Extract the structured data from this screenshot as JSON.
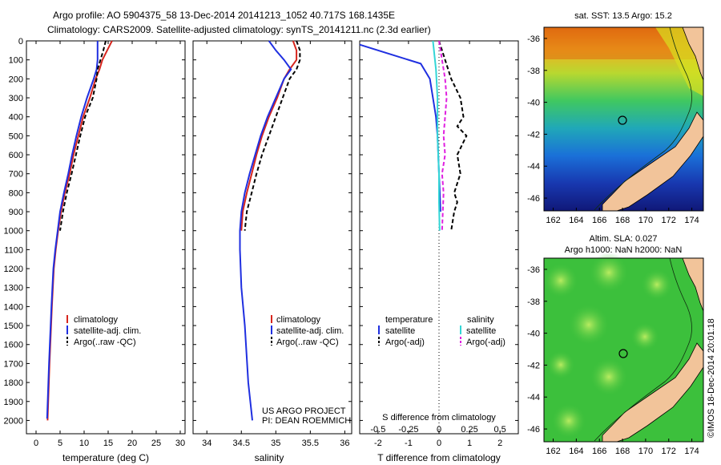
{
  "header": {
    "title_line1": "Argo profile: AO 5904375_58 13-Dec-2014 20141213_1052 40.717S 168.1435E",
    "title_line2": "Climatology: CARS2009. Satellite-adjusted climatology: synTS_20141211.nc (2.3d earlier)"
  },
  "colors": {
    "climatology": "#d7261e",
    "satellite": "#1f2fe0",
    "argo": "#000000",
    "satellite_salinity": "#33d6d6",
    "argo_salinity_adj": "#e020e0",
    "land": "#f2c49a"
  },
  "chart_data": [
    {
      "name": "temperature-profile",
      "type": "line",
      "xlabel": "temperature (deg C)",
      "xlim": [
        -2,
        31
      ],
      "xticks": [
        0,
        5,
        10,
        15,
        20,
        25,
        30
      ],
      "ylim": [
        0,
        2070
      ],
      "yticks": [
        0,
        100,
        200,
        300,
        400,
        500,
        600,
        700,
        800,
        900,
        1000,
        1100,
        1200,
        1300,
        1400,
        1500,
        1600,
        1700,
        1800,
        1900,
        2000
      ],
      "legend": [
        "climatology",
        "satellite-adj. clim.",
        "Argo(..raw -QC)"
      ],
      "series": [
        {
          "name": "climatology",
          "x": [
            15.8,
            14.8,
            13.8,
            13.2,
            12.4,
            11.2,
            9.8,
            8.8,
            7.8,
            7.0,
            6.0,
            5.2,
            4.6,
            4.1,
            3.7,
            3.3,
            2.8,
            2.4
          ],
          "y": [
            0,
            50,
            100,
            150,
            200,
            300,
            400,
            500,
            600,
            700,
            800,
            900,
            1000,
            1100,
            1200,
            1400,
            1700,
            2000
          ]
        },
        {
          "name": "satellite-adj. clim.",
          "x": [
            12.8,
            12.8,
            12.8,
            12.6,
            12.0,
            10.6,
            9.4,
            8.4,
            7.5,
            6.7,
            5.8,
            5.0,
            4.5,
            4.0,
            3.6,
            3.2,
            2.7,
            2.3
          ],
          "y": [
            0,
            50,
            100,
            150,
            200,
            300,
            400,
            500,
            600,
            700,
            800,
            900,
            1000,
            1100,
            1200,
            1400,
            1700,
            1990
          ]
        },
        {
          "name": "Argo(..raw -QC)",
          "x": [
            14.5,
            14.0,
            13.4,
            12.8,
            12.6,
            11.8,
            10.2,
            9.2,
            8.3,
            7.4,
            6.4,
            5.6,
            5.0
          ],
          "y": [
            0,
            50,
            100,
            150,
            200,
            300,
            400,
            500,
            600,
            700,
            800,
            900,
            1000
          ]
        }
      ]
    },
    {
      "name": "salinity-profile",
      "type": "line",
      "xlabel": "salinity",
      "xlim": [
        33.8,
        36.1
      ],
      "xticks": [
        34,
        34.5,
        35,
        35.5,
        36
      ],
      "ylim": [
        0,
        2070
      ],
      "legend": [
        "climatology",
        "satellite-adj. clim.",
        "Argo(..raw -QC)"
      ],
      "series": [
        {
          "name": "climatology",
          "x": [
            35.25,
            35.3,
            35.3,
            35.2,
            35.12,
            35.02,
            34.9,
            34.8,
            34.72,
            34.65,
            34.58,
            34.52,
            34.5
          ],
          "y": [
            0,
            50,
            100,
            150,
            200,
            300,
            400,
            500,
            600,
            700,
            800,
            900,
            1000
          ]
        },
        {
          "name": "satellite-adj. clim.",
          "x": [
            34.9,
            35.0,
            35.12,
            35.22,
            35.12,
            35.0,
            34.88,
            34.78,
            34.7,
            34.62,
            34.55,
            34.5,
            34.48,
            34.48,
            34.5,
            34.55,
            34.6,
            34.66
          ],
          "y": [
            0,
            50,
            100,
            150,
            200,
            300,
            400,
            500,
            600,
            700,
            800,
            900,
            1000,
            1100,
            1300,
            1500,
            1800,
            2000
          ]
        },
        {
          "name": "Argo(..raw -QC)",
          "x": [
            35.3,
            35.35,
            35.35,
            35.3,
            35.2,
            35.1,
            35.0,
            34.9,
            34.8,
            34.72,
            34.65,
            34.58,
            34.55
          ],
          "y": [
            0,
            50,
            100,
            150,
            200,
            300,
            400,
            500,
            600,
            700,
            800,
            900,
            1000
          ]
        }
      ],
      "annotation_line1": "US ARGO PROJECT",
      "annotation_line2": "PI: DEAN ROEMMICH"
    },
    {
      "name": "difference-profile",
      "type": "line",
      "xlabel": "T difference from climatology",
      "xlabel_top": "S difference from climatology",
      "xlim": [
        -2.6,
        2.6
      ],
      "xticks": [
        -2,
        -1,
        0,
        1,
        2
      ],
      "sticks": [
        "-0.5",
        "-0.25",
        "0",
        "0.25",
        "0.5"
      ],
      "ylim": [
        0,
        2070
      ],
      "legend_header_t": "temperature",
      "legend_header_s": "salinity",
      "legend": [
        "satellite",
        "Argo(-adj)",
        "satellite",
        "Argo(-adj)"
      ],
      "series": [
        {
          "name": "satellite",
          "x": [
            -2.6,
            -1.6,
            -0.6,
            -0.3,
            -0.2,
            -0.1,
            -0.05,
            0.0,
            0.05
          ],
          "y": [
            20,
            70,
            120,
            200,
            300,
            400,
            500,
            700,
            900
          ]
        },
        {
          "name": "Argo(-adj)",
          "x": [
            0.0,
            0.2,
            0.4,
            0.7,
            0.8,
            0.6,
            0.9,
            0.6,
            0.7,
            0.5,
            0.6,
            0.5,
            0.4
          ],
          "y": [
            0,
            100,
            200,
            300,
            400,
            450,
            500,
            600,
            700,
            800,
            850,
            900,
            1000
          ]
        },
        {
          "name": "satellite",
          "x": [
            -0.2,
            -0.1,
            -0.05,
            -0.05,
            0.0,
            0.0,
            0.02
          ],
          "y": [
            0,
            150,
            300,
            500,
            700,
            850,
            1000
          ]
        },
        {
          "name": "Argo(-adj)",
          "x": [
            0.0,
            0.1,
            0.2,
            0.25,
            0.2,
            0.15,
            0.2,
            0.1,
            0.15,
            0.1
          ],
          "y": [
            0,
            100,
            200,
            300,
            400,
            500,
            600,
            700,
            800,
            1000
          ]
        }
      ]
    }
  ],
  "maps": {
    "sst": {
      "title": "sat. SST: 13.5 Argo: 15.2",
      "lat_ticks": [
        "-36",
        "-38",
        "-40",
        "-42",
        "-44",
        "-46"
      ],
      "lon_ticks": [
        "162",
        "164",
        "166",
        "168",
        "170",
        "172",
        "174"
      ]
    },
    "sla": {
      "title_line1": "Altim. SLA: 0.027",
      "title_line2": "Argo h1000: NaN h2000: NaN",
      "lat_ticks": [
        "-36",
        "-38",
        "-40",
        "-42",
        "-44",
        "-46"
      ],
      "lon_ticks": [
        "162",
        "164",
        "166",
        "168",
        "170",
        "172",
        "174"
      ]
    },
    "credit": "©IMOS 18-Dec-2014 20:01:18"
  }
}
